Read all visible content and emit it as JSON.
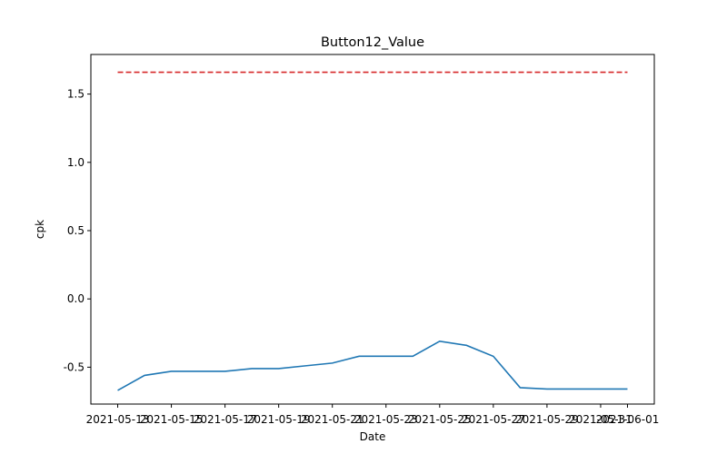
{
  "chart_data": {
    "type": "line",
    "title": "Button12_Value",
    "xlabel": "Date",
    "ylabel": "cpk",
    "x_ticks": [
      "2021-05-13",
      "2021-05-15",
      "2021-05-17",
      "2021-05-19",
      "2021-05-21",
      "2021-05-23",
      "2021-05-25",
      "2021-05-27",
      "2021-05-29",
      "2021-05-31",
      "2021-06-01"
    ],
    "y_ticks": [
      -0.5,
      0.0,
      0.5,
      1.0,
      1.5
    ],
    "ylim": [
      -0.77,
      1.79
    ],
    "xlim": [
      "2021-05-12",
      "2021-06-02"
    ],
    "grid": false,
    "colors": {
      "series": "#1f77b4",
      "limit": "#d62728"
    },
    "series": [
      {
        "x": [
          "2021-05-13",
          "2021-05-14",
          "2021-05-15",
          "2021-05-16",
          "2021-05-17",
          "2021-05-18",
          "2021-05-19",
          "2021-05-20",
          "2021-05-21",
          "2021-05-22",
          "2021-05-23",
          "2021-05-24",
          "2021-05-25",
          "2021-05-26",
          "2021-05-27",
          "2021-05-28",
          "2021-05-29",
          "2021-05-30",
          "2021-05-31",
          "2021-06-01"
        ],
        "values": [
          -0.67,
          -0.56,
          -0.53,
          -0.53,
          -0.53,
          -0.51,
          -0.51,
          -0.49,
          -0.47,
          -0.42,
          -0.42,
          -0.42,
          -0.31,
          -0.34,
          -0.42,
          -0.65,
          -0.66,
          -0.66,
          -0.66,
          -0.66
        ]
      },
      {
        "style": "dashed",
        "x": [
          "2021-05-13",
          "2021-06-01"
        ],
        "values": [
          1.66,
          1.66
        ]
      }
    ]
  }
}
